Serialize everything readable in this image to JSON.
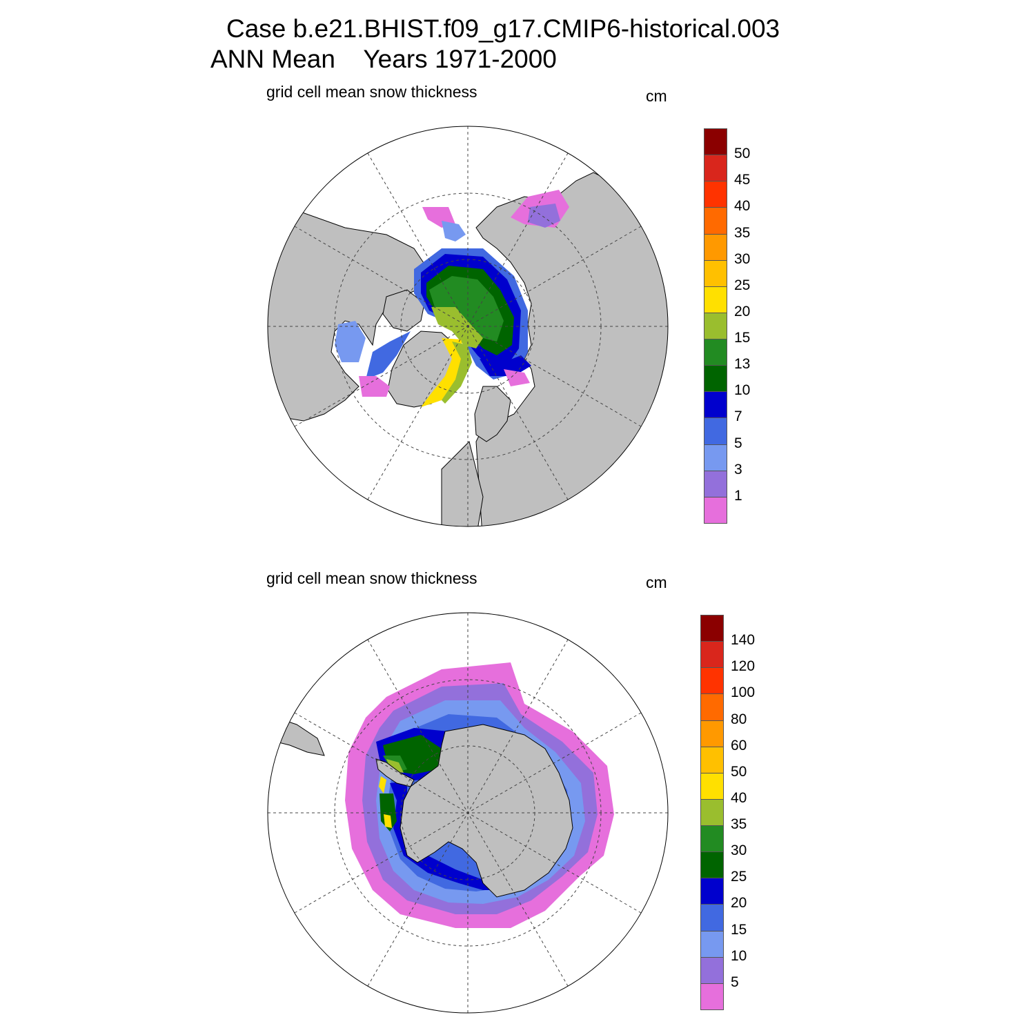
{
  "title_line1": "Case b.e21.BHIST.f09_g17.CMIP6-historical.003",
  "title_line2": "ANN Mean    Years 1971-2000",
  "colors": {
    "land": "#bfbfbf",
    "ocean_no_ice": "#ffffff",
    "grid": "#444444"
  },
  "panels": [
    {
      "id": "north",
      "hemisphere": "Northern Hemisphere",
      "variable": "grid cell mean snow thickness",
      "units": "cm",
      "colorbar": {
        "levels": [
          "50",
          "45",
          "40",
          "35",
          "30",
          "25",
          "20",
          "15",
          "13",
          "10",
          "7",
          "5",
          "3",
          "1"
        ],
        "colors": [
          "#8b0000",
          "#d9261c",
          "#ff3300",
          "#ff6a00",
          "#ff9900",
          "#ffc000",
          "#ffe000",
          "#9abe2e",
          "#228b22",
          "#006400",
          "#0000cd",
          "#4169e1",
          "#7799f0",
          "#9370db",
          "#e66fdc"
        ]
      }
    },
    {
      "id": "south",
      "hemisphere": "Southern Hemisphere",
      "variable": "grid cell mean snow thickness",
      "units": "cm",
      "colorbar": {
        "levels": [
          "140",
          "120",
          "100",
          "80",
          "60",
          "50",
          "40",
          "35",
          "30",
          "25",
          "20",
          "15",
          "10",
          "5"
        ],
        "colors": [
          "#8b0000",
          "#d9261c",
          "#ff3300",
          "#ff6a00",
          "#ff9900",
          "#ffc000",
          "#ffe000",
          "#9abe2e",
          "#228b22",
          "#006400",
          "#0000cd",
          "#4169e1",
          "#7799f0",
          "#9370db",
          "#e66fdc"
        ]
      }
    }
  ]
}
